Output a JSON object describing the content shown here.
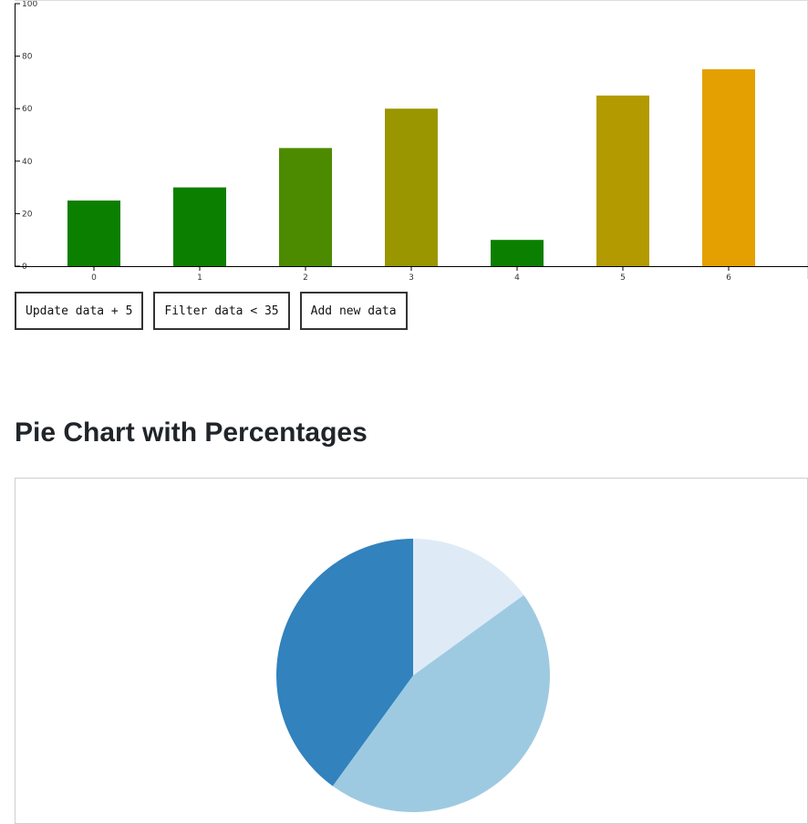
{
  "buttons": {
    "update": "Update data + 5",
    "filter": "Filter data < 35",
    "add": "Add new data"
  },
  "pie_title": "Pie Chart with Percentages",
  "chart_data": [
    {
      "type": "bar",
      "categories": [
        "0",
        "1",
        "2",
        "3",
        "4",
        "5",
        "6"
      ],
      "values": [
        25,
        30,
        45,
        60,
        10,
        65,
        75
      ],
      "colors": [
        "#0b7f00",
        "#0b7f00",
        "#4c8b00",
        "#9a9600",
        "#0b7f00",
        "#b39a00",
        "#e3a000"
      ],
      "y_ticks": [
        0,
        20,
        40,
        60,
        80,
        100
      ],
      "ylim": [
        0,
        100
      ],
      "grid": false
    },
    {
      "type": "pie",
      "values": [
        15,
        45,
        40
      ],
      "colors": [
        "#deebf7",
        "#9ecae1",
        "#3182bd"
      ]
    }
  ]
}
